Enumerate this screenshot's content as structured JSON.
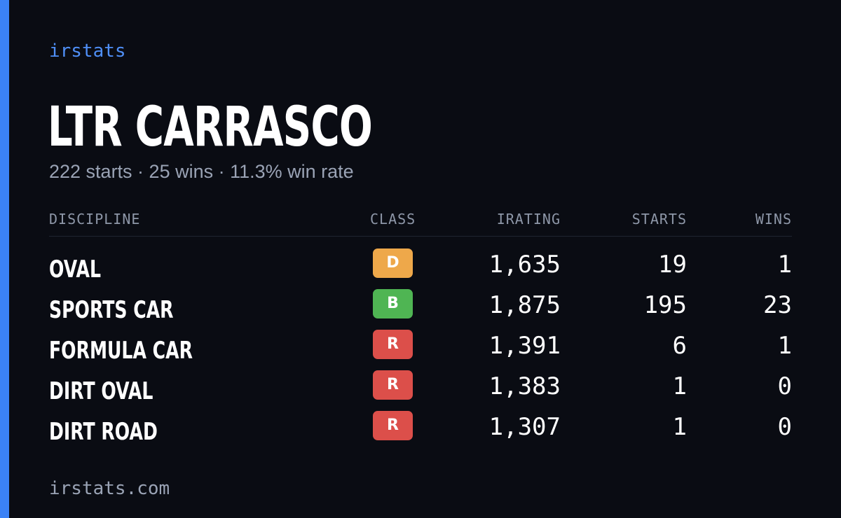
{
  "brand": "irstats",
  "driver": {
    "name": "LTR CARRASCO",
    "summary": "222 starts · 25 wins · 11.3% win rate"
  },
  "table": {
    "headers": {
      "discipline": "DISCIPLINE",
      "class": "CLASS",
      "irating": "IRATING",
      "starts": "STARTS",
      "wins": "WINS"
    },
    "rows": [
      {
        "discipline": "OVAL",
        "class": "D",
        "class_color": "#eea84a",
        "irating": "1,635",
        "starts": "19",
        "wins": "1"
      },
      {
        "discipline": "SPORTS CAR",
        "class": "B",
        "class_color": "#4fb553",
        "irating": "1,875",
        "starts": "195",
        "wins": "23"
      },
      {
        "discipline": "FORMULA CAR",
        "class": "R",
        "class_color": "#dc4f4a",
        "irating": "1,391",
        "starts": "6",
        "wins": "1"
      },
      {
        "discipline": "DIRT OVAL",
        "class": "R",
        "class_color": "#dc4f4a",
        "irating": "1,383",
        "starts": "1",
        "wins": "0"
      },
      {
        "discipline": "DIRT ROAD",
        "class": "R",
        "class_color": "#dc4f4a",
        "irating": "1,307",
        "starts": "1",
        "wins": "0"
      }
    ]
  },
  "footer": "irstats.com",
  "colors": {
    "accent": "#3b82f6",
    "background": "#0a0c13"
  }
}
